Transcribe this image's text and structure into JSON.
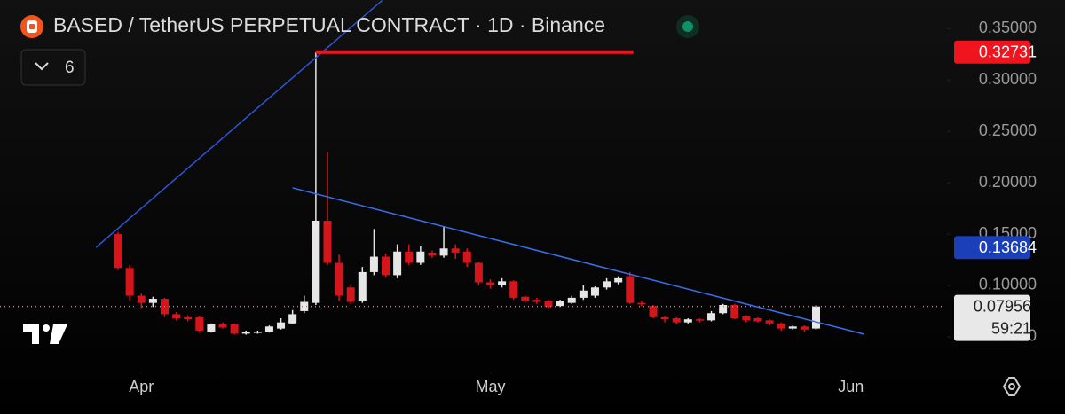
{
  "chart_data": {
    "type": "candlestick",
    "title": "BASED / TetherUS PERPETUAL CONTRACT · 1D · Binance",
    "indicator_count": "6",
    "up_color": "#e6e6e6",
    "down_color": "#d4161c",
    "open": [
      0.15,
      0.117,
      0.09,
      0.083,
      0.087,
      0.072,
      0.069,
      0.069,
      0.055,
      0.062,
      0.062,
      0.053,
      0.054,
      0.055,
      0.058,
      0.063,
      0.075,
      0.083,
      0.163,
      0.122,
      0.098,
      0.085,
      0.113,
      0.128,
      0.11,
      0.133,
      0.122,
      0.132,
      0.129,
      0.136,
      0.133,
      0.122,
      0.103,
      0.1,
      0.104,
      0.089,
      0.086,
      0.085,
      0.08,
      0.083,
      0.088,
      0.09,
      0.098,
      0.103,
      0.109,
      0.083,
      0.08,
      0.069,
      0.068,
      0.064,
      0.067,
      0.066,
      0.073,
      0.081,
      0.07,
      0.068,
      0.066,
      0.063,
      0.058,
      0.06,
      0.058
    ],
    "high": [
      0.152,
      0.12,
      0.092,
      0.089,
      0.088,
      0.074,
      0.071,
      0.07,
      0.063,
      0.064,
      0.063,
      0.056,
      0.056,
      0.061,
      0.068,
      0.076,
      0.09,
      0.327,
      0.23,
      0.13,
      0.1,
      0.118,
      0.155,
      0.131,
      0.14,
      0.14,
      0.138,
      0.134,
      0.157,
      0.14,
      0.136,
      0.123,
      0.106,
      0.107,
      0.105,
      0.09,
      0.088,
      0.086,
      0.086,
      0.09,
      0.1,
      0.099,
      0.107,
      0.109,
      0.113,
      0.085,
      0.081,
      0.07,
      0.069,
      0.068,
      0.068,
      0.075,
      0.082,
      0.082,
      0.071,
      0.069,
      0.067,
      0.064,
      0.061,
      0.061,
      0.081
    ],
    "low": [
      0.115,
      0.085,
      0.078,
      0.079,
      0.069,
      0.066,
      0.065,
      0.054,
      0.054,
      0.058,
      0.052,
      0.052,
      0.053,
      0.054,
      0.057,
      0.062,
      0.073,
      0.081,
      0.12,
      0.085,
      0.082,
      0.083,
      0.11,
      0.108,
      0.107,
      0.12,
      0.12,
      0.127,
      0.127,
      0.126,
      0.118,
      0.1,
      0.097,
      0.098,
      0.086,
      0.083,
      0.082,
      0.078,
      0.079,
      0.082,
      0.086,
      0.088,
      0.096,
      0.101,
      0.082,
      0.08,
      0.068,
      0.064,
      0.062,
      0.063,
      0.064,
      0.065,
      0.072,
      0.067,
      0.064,
      0.064,
      0.061,
      0.056,
      0.057,
      0.055,
      0.057
    ],
    "close": [
      0.117,
      0.09,
      0.083,
      0.087,
      0.072,
      0.068,
      0.067,
      0.056,
      0.062,
      0.059,
      0.053,
      0.055,
      0.055,
      0.06,
      0.064,
      0.072,
      0.084,
      0.163,
      0.122,
      0.09,
      0.084,
      0.113,
      0.128,
      0.11,
      0.133,
      0.122,
      0.133,
      0.129,
      0.136,
      0.132,
      0.122,
      0.103,
      0.1,
      0.104,
      0.088,
      0.085,
      0.084,
      0.079,
      0.085,
      0.088,
      0.095,
      0.098,
      0.104,
      0.107,
      0.083,
      0.082,
      0.069,
      0.067,
      0.064,
      0.067,
      0.066,
      0.073,
      0.081,
      0.068,
      0.066,
      0.065,
      0.063,
      0.058,
      0.06,
      0.057,
      0.07956
    ],
    "xlim": [
      -10.15,
      71.1
    ],
    "xticks": [
      {
        "value": 2,
        "label": "Apr"
      },
      {
        "value": 32,
        "label": "May"
      },
      {
        "value": 63,
        "label": "Jun"
      }
    ],
    "ylim": [
      0.024,
      0.378
    ],
    "yticks": [
      {
        "value": 0.05,
        "label": "0.05000"
      },
      {
        "value": 0.1,
        "label": "0.10000"
      },
      {
        "value": 0.15,
        "label": "0.15000"
      },
      {
        "value": 0.2,
        "label": "0.20000"
      },
      {
        "value": 0.25,
        "label": "0.25000"
      },
      {
        "value": 0.3,
        "label": "0.30000"
      },
      {
        "value": 0.35,
        "label": "0.35000"
      }
    ],
    "trend_lines": [
      {
        "color": "#2d55d6",
        "points": [
          [
            -1.9,
            0.137
          ],
          [
            22.7,
            0.3776
          ]
        ]
      },
      {
        "color": "#3a6ff0",
        "points": [
          [
            15.0,
            0.195
          ],
          [
            64.1,
            0.0526
          ]
        ]
      }
    ],
    "horizontal_lines": [
      {
        "value": 0.32731,
        "from": 17,
        "to": 44.3,
        "color": "#f0141e"
      }
    ],
    "price_labels": [
      {
        "value": 0.32731,
        "color": "#f0141e"
      },
      {
        "value": 0.13684,
        "color": "#1a3fb8"
      }
    ],
    "last_price": {
      "value": 0.07956,
      "countdown": "59:21",
      "line_color": "#e36d7a"
    }
  }
}
